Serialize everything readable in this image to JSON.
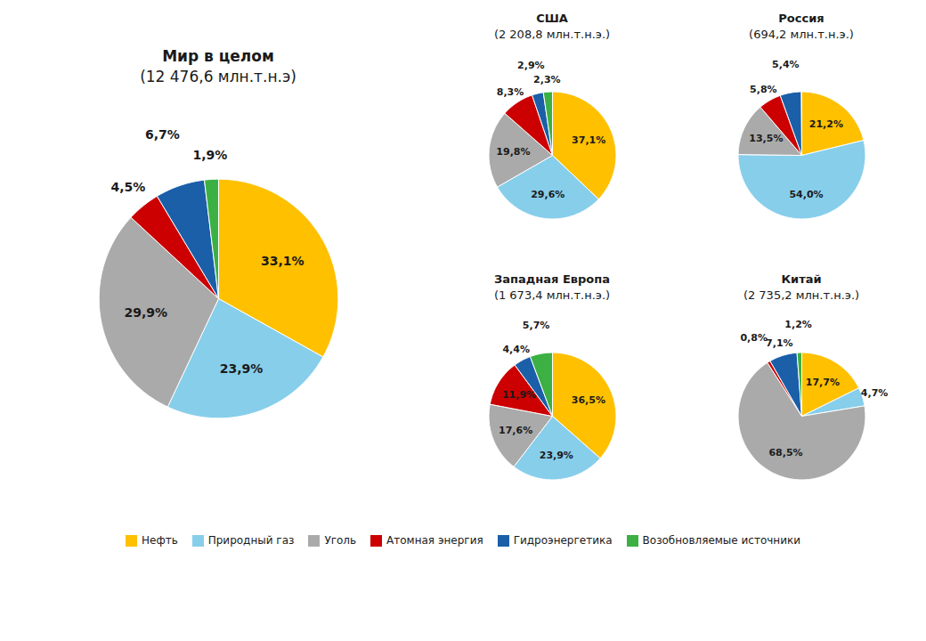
{
  "chart_data": [
    {
      "type": "pie",
      "title": "Мир в целом",
      "subtitle": "(12 476,6 млн.т.н.э)",
      "categories": [
        "Нефть",
        "Природный газ",
        "Уголь",
        "Атомная энергия",
        "Гидроэнергетика",
        "Возобновляемые источники"
      ],
      "values": [
        33.1,
        23.9,
        29.9,
        4.5,
        6.7,
        1.9
      ],
      "value_labels": [
        "33,1%",
        "23,9%",
        "29,9%",
        "4,5%",
        "6,7%",
        "1,9%"
      ],
      "colors": [
        "#FFC000",
        "#87CEEB",
        "#AAAAAA",
        "#CC0000",
        "#1A5FA8",
        "#3CB043"
      ],
      "data_labels": true,
      "legend": "bottom"
    },
    {
      "type": "pie",
      "title": "США",
      "subtitle": "(2 208,8 млн.т.н.э.)",
      "categories": [
        "Нефть",
        "Природный газ",
        "Уголь",
        "Атомная энергия",
        "Гидроэнергетика",
        "Возобновляемые источники"
      ],
      "values": [
        37.1,
        29.6,
        19.8,
        8.3,
        2.9,
        2.3
      ],
      "value_labels": [
        "37,1%",
        "29,6%",
        "19,8%",
        "8,3%",
        "2,9%",
        "2,3%"
      ],
      "colors": [
        "#FFC000",
        "#87CEEB",
        "#AAAAAA",
        "#CC0000",
        "#1A5FA8",
        "#3CB043"
      ],
      "data_labels": true,
      "legend": "bottom"
    },
    {
      "type": "pie",
      "title": "Россия",
      "subtitle": "(694,2 млн.т.н.э.)",
      "categories": [
        "Нефть",
        "Природный газ",
        "Уголь",
        "Атомная энергия",
        "Гидроэнергетика",
        "Возобновляемые источники"
      ],
      "values": [
        21.2,
        54.0,
        13.5,
        5.8,
        5.4,
        0.1
      ],
      "value_labels": [
        "21,2%",
        "54,0%",
        "13,5%",
        "5,8%",
        "5,4%",
        null
      ],
      "colors": [
        "#FFC000",
        "#87CEEB",
        "#AAAAAA",
        "#CC0000",
        "#1A5FA8",
        "#3CB043"
      ],
      "data_labels": true,
      "legend": "bottom"
    },
    {
      "type": "pie",
      "title": "Западная Европа",
      "subtitle": "(1 673,4 млн.т.н.э.)",
      "categories": [
        "Нефть",
        "Природный газ",
        "Уголь",
        "Атомная энергия",
        "Гидроэнергетика",
        "Возобновляемые источники"
      ],
      "values": [
        36.5,
        23.9,
        17.6,
        11.9,
        4.4,
        5.7
      ],
      "value_labels": [
        "36,5%",
        "23,9%",
        "17,6%",
        "11,9%",
        "4,4%",
        "5,7%"
      ],
      "colors": [
        "#FFC000",
        "#87CEEB",
        "#AAAAAA",
        "#CC0000",
        "#1A5FA8",
        "#3CB043"
      ],
      "data_labels": true,
      "legend": "bottom"
    },
    {
      "type": "pie",
      "title": "Китай",
      "subtitle": "(2 735,2 млн.т.н.э.)",
      "categories": [
        "Нефть",
        "Природный газ",
        "Уголь",
        "Атомная энергия",
        "Гидроэнергетика",
        "Возобновляемые источники"
      ],
      "values": [
        17.7,
        4.7,
        68.5,
        0.8,
        7.1,
        1.2
      ],
      "value_labels": [
        "17,7%",
        "4,7%",
        "68,5%",
        "0,8%",
        "7,1%",
        "1,2%"
      ],
      "colors": [
        "#FFC000",
        "#87CEEB",
        "#AAAAAA",
        "#CC0000",
        "#1A5FA8",
        "#3CB043"
      ],
      "data_labels": true,
      "legend": "bottom"
    }
  ]
}
